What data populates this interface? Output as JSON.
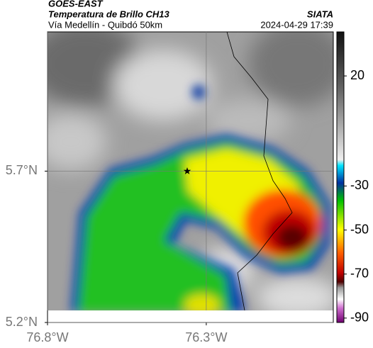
{
  "chart_data": {
    "type": "map",
    "source": "GOES-EAST",
    "title": "Temperatura de Brillo CH13",
    "credit": "SIATA",
    "subtitle": "Vía Medellín - Quibdó 50km",
    "timestamp": "2024-04-29 17:39",
    "xlim": [
      -76.8,
      -75.9
    ],
    "ylim": [
      5.2,
      6.16
    ],
    "xticks": [
      {
        "value": -76.8,
        "label": "76.8°W"
      },
      {
        "value": -76.3,
        "label": "76.3°W"
      }
    ],
    "yticks": [
      {
        "value": 5.2,
        "label": "5.2°N"
      },
      {
        "value": 5.7,
        "label": "5.7°N"
      }
    ],
    "grid": true,
    "marker": {
      "lon": -76.36,
      "lat": 5.7
    },
    "colorbar": {
      "lim": [
        -92,
        40
      ],
      "ticks": [
        20,
        -30,
        -50,
        -70,
        -90
      ]
    }
  }
}
